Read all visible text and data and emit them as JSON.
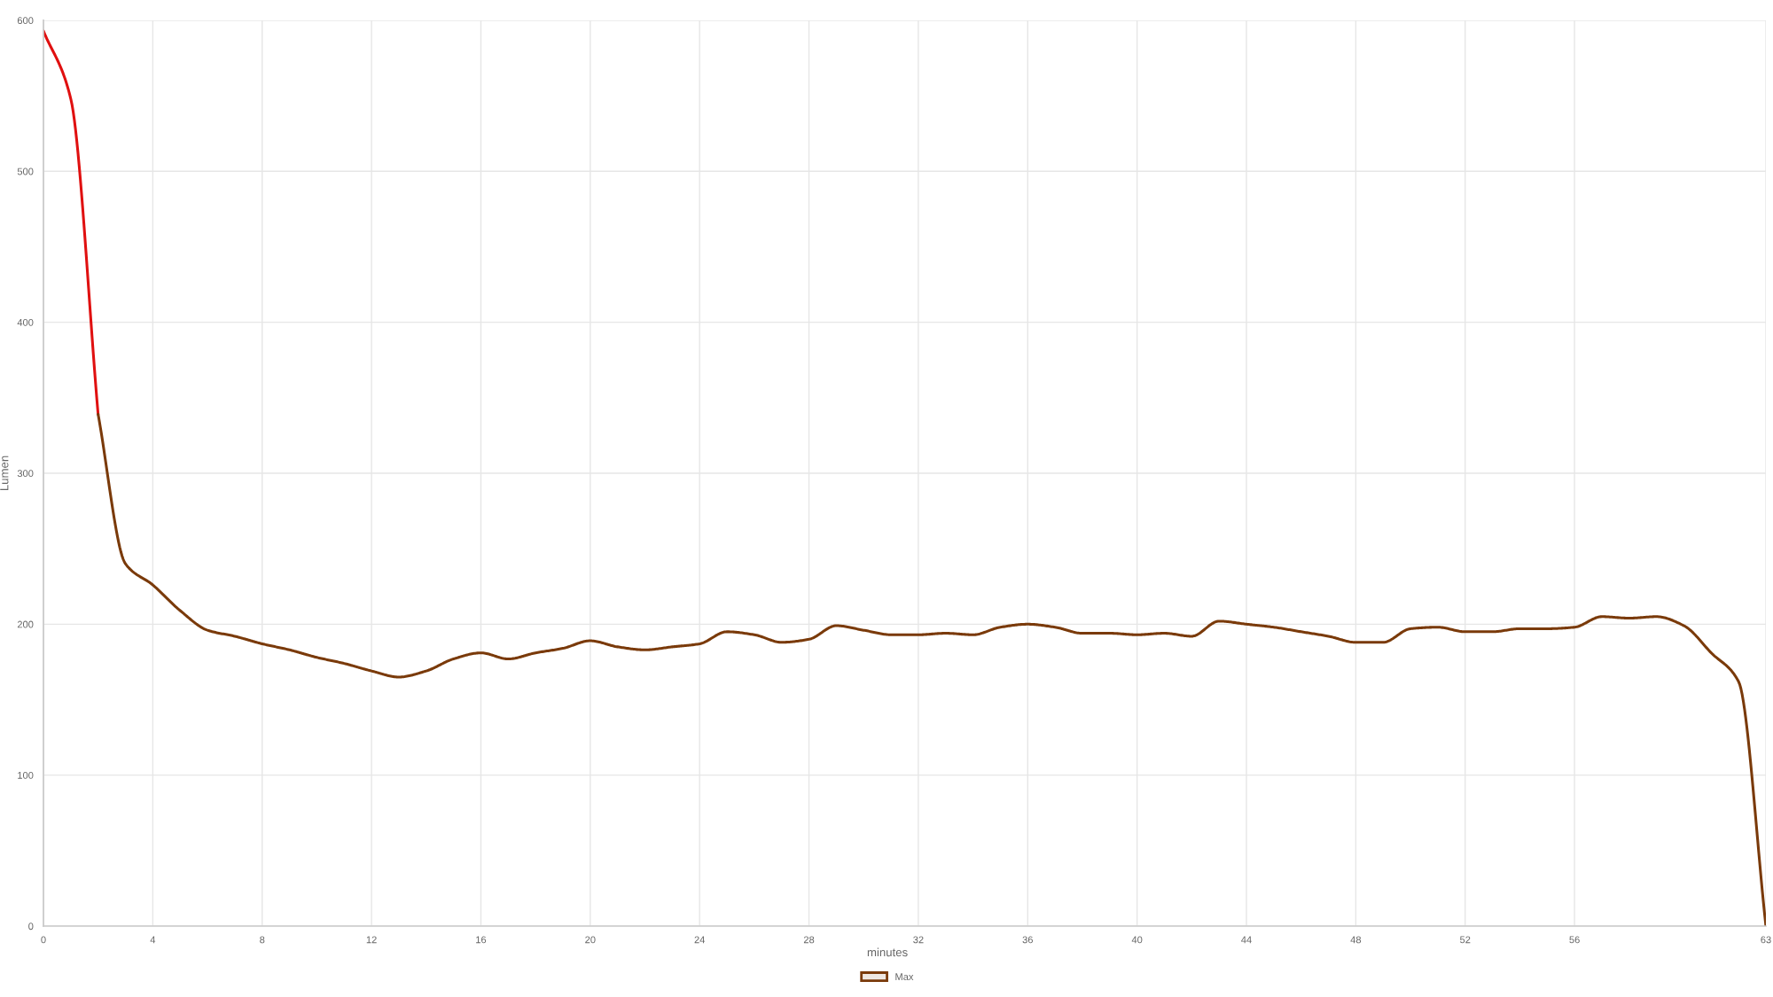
{
  "chart_data": {
    "type": "line",
    "xlabel": "minutes",
    "ylabel": "Lumen",
    "series": [
      {
        "color": "#e01010",
        "x": [
          0,
          1,
          2
        ],
        "values": [
          593,
          548,
          339
        ]
      },
      {
        "name": "Max",
        "color": "#7a3a0a",
        "x": [
          2,
          3,
          4,
          5,
          6,
          7,
          8,
          9,
          10,
          11,
          12,
          13,
          14,
          15,
          16,
          17,
          18,
          19,
          20,
          21,
          22,
          23,
          24,
          25,
          26,
          27,
          28,
          29,
          30,
          31,
          32,
          33,
          34,
          35,
          36,
          37,
          38,
          39,
          40,
          41,
          42,
          43,
          44,
          45,
          46,
          47,
          48,
          49,
          50,
          51,
          52,
          53,
          54,
          55,
          56,
          57,
          58,
          59,
          60,
          61,
          62,
          63
        ],
        "values": [
          339,
          240,
          226,
          209,
          196,
          192,
          187,
          183,
          178,
          174,
          169,
          165,
          169,
          177,
          181,
          177,
          181,
          184,
          189,
          185,
          183,
          185,
          187,
          195,
          193,
          188,
          190,
          199,
          196,
          193,
          193,
          194,
          193,
          198,
          200,
          198,
          194,
          194,
          193,
          194,
          192,
          202,
          200,
          198,
          195,
          192,
          188,
          188,
          197,
          198,
          195,
          195,
          197,
          197,
          198,
          205,
          204,
          205,
          199,
          181,
          162,
          0
        ]
      }
    ],
    "xlim": [
      0,
      63
    ],
    "xticks": [
      0,
      4,
      8,
      12,
      16,
      20,
      24,
      28,
      32,
      36,
      40,
      44,
      48,
      52,
      56,
      63
    ],
    "ylim": [
      0,
      600
    ],
    "yticks": [
      0,
      100,
      200,
      300,
      400,
      500,
      600
    ],
    "grid": true,
    "legend": "bottom"
  }
}
